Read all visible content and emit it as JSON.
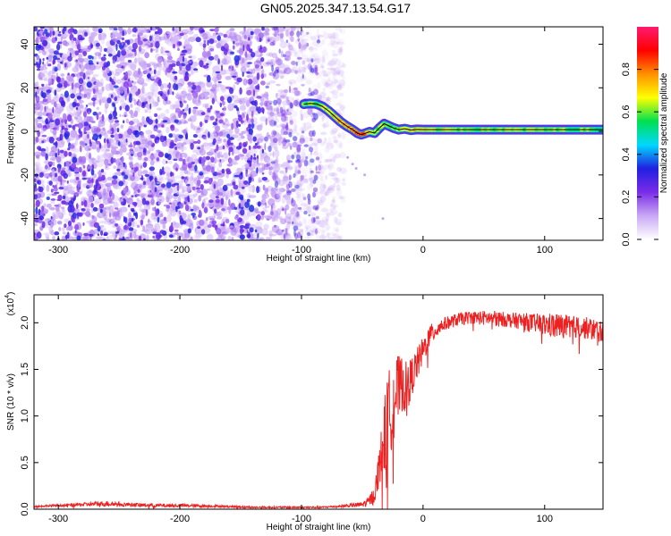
{
  "figure": {
    "title": "GN05.2025.347.13.54.G17"
  },
  "chart_data": [
    {
      "type": "heatmap",
      "title": "GN05.2025.347.13.54.G17",
      "xlabel": "Height of straight line (km)",
      "ylabel": "Frequency (Hz)",
      "xlim": [
        -320,
        148
      ],
      "ylim": [
        -50,
        48
      ],
      "x_ticks": [
        -300,
        -200,
        -100,
        0,
        100
      ],
      "x_tick_labels": [
        "-300",
        "-200",
        "-100",
        "0",
        "100"
      ],
      "y_ticks": [
        -40,
        -20,
        0,
        20,
        40
      ],
      "y_tick_labels": [
        "-40",
        "-20",
        "0",
        "20",
        "40"
      ],
      "colorbar": {
        "label": "Normalized spectral amplitude",
        "range": [
          0,
          1
        ],
        "ticks": [
          0.0,
          0.2,
          0.4,
          0.6,
          0.8
        ],
        "tick_labels": [
          "0.0",
          "0.2",
          "0.4",
          "0.6",
          "0.8"
        ],
        "colors": [
          "#ffffff",
          "#c9a8f5",
          "#7a2ce8",
          "#2020e0",
          "#00d8ff",
          "#00e050",
          "#ffff00",
          "#ff9000",
          "#ff0000",
          "#ff1a70"
        ]
      },
      "noise_region": {
        "x_range": [
          -320,
          -85
        ],
        "frequency_range": [
          -50,
          48
        ],
        "amplitude_range": [
          0.1,
          0.35
        ],
        "description_color": "#8040f0"
      },
      "signal_track": {
        "x": [
          -98,
          -93,
          -88,
          -83,
          -78,
          -73,
          -68,
          -63,
          -58,
          -54,
          -51,
          -48,
          -44,
          -40,
          -36,
          -32,
          -28,
          -24,
          -20,
          -15,
          -10,
          -5,
          0,
          148
        ],
        "frequency": [
          12.5,
          12.8,
          12.6,
          11.5,
          9.5,
          7.0,
          4.5,
          2.5,
          0.8,
          -0.8,
          -1.5,
          -1.0,
          -0.2,
          -0.8,
          1.5,
          3.5,
          2.5,
          1.5,
          0.8,
          1.2,
          0.6,
          0.9,
          0.8,
          0.8
        ],
        "amplitude_high": [
          0.55,
          0.6,
          0.6,
          0.65,
          0.65,
          0.7,
          0.72,
          0.75,
          0.8,
          0.82,
          0.85,
          0.82,
          0.7,
          0.65,
          0.6,
          0.62,
          0.6,
          0.6,
          0.62,
          0.65,
          0.7,
          0.7,
          0.65,
          0.6
        ]
      },
      "artifact_points": [
        {
          "x": -95,
          "frequency": 45
        },
        {
          "x": -62,
          "frequency": -12
        },
        {
          "x": -58,
          "frequency": -15
        },
        {
          "x": -55,
          "frequency": -17
        },
        {
          "x": -48,
          "frequency": -20
        },
        {
          "x": -33,
          "frequency": -40
        }
      ],
      "grid": false,
      "legend": "colorbar-right"
    },
    {
      "type": "line",
      "xlabel": "Height of straight line (km)",
      "ylabel": "SNR (10 * v/v)",
      "multiplier": "(x10",
      "multiplier_exponent": "4",
      "xlim": [
        -320,
        148
      ],
      "ylim": [
        0,
        2.3
      ],
      "x_ticks": [
        -300,
        -200,
        -100,
        0,
        100
      ],
      "x_tick_labels": [
        "-300",
        "-200",
        "-100",
        "0",
        "100"
      ],
      "y_ticks": [
        0,
        0.5,
        1.0,
        1.5,
        2.0
      ],
      "y_tick_labels": [
        "0.0",
        "0.5",
        "1.0",
        "1.5",
        "2.0"
      ],
      "series": [
        {
          "color": "#ee2020",
          "x": [
            -320,
            -300,
            -280,
            -260,
            -240,
            -220,
            -200,
            -180,
            -160,
            -140,
            -120,
            -100,
            -85,
            -70,
            -60,
            -50,
            -45,
            -40,
            -38,
            -35,
            -32,
            -30,
            -28,
            -25,
            -22,
            -20,
            -18,
            -15,
            -12,
            -10,
            -5,
            0,
            5,
            10,
            15,
            20,
            25,
            30,
            35,
            40,
            50,
            60,
            70,
            80,
            90,
            100,
            110,
            120,
            130,
            140,
            148
          ],
          "y": [
            0.03,
            0.04,
            0.05,
            0.06,
            0.05,
            0.04,
            0.04,
            0.035,
            0.03,
            0.02,
            0.02,
            0.02,
            0.02,
            0.03,
            0.04,
            0.05,
            0.08,
            0.15,
            0.3,
            0.55,
            0.75,
            0.9,
            1.0,
            1.15,
            1.25,
            1.3,
            1.35,
            1.3,
            1.35,
            1.4,
            1.55,
            1.7,
            1.85,
            1.92,
            1.97,
            2.0,
            2.02,
            2.04,
            2.05,
            2.06,
            2.05,
            2.05,
            2.03,
            2.02,
            2.0,
            1.98,
            1.97,
            1.96,
            1.95,
            1.93,
            1.9
          ],
          "noise_amplitude": [
            0.01,
            0.01,
            0.02,
            0.03,
            0.02,
            0.02,
            0.02,
            0.015,
            0.01,
            0.01,
            0.01,
            0.01,
            0.01,
            0.01,
            0.02,
            0.03,
            0.05,
            0.1,
            0.15,
            0.25,
            0.4,
            0.5,
            0.5,
            0.45,
            0.4,
            0.35,
            0.3,
            0.28,
            0.25,
            0.22,
            0.18,
            0.15,
            0.12,
            0.1,
            0.08,
            0.07,
            0.07,
            0.07,
            0.07,
            0.07,
            0.08,
            0.08,
            0.08,
            0.09,
            0.1,
            0.12,
            0.14,
            0.12,
            0.12,
            0.12,
            0.12
          ]
        }
      ],
      "grid": false,
      "legend": "none"
    }
  ]
}
